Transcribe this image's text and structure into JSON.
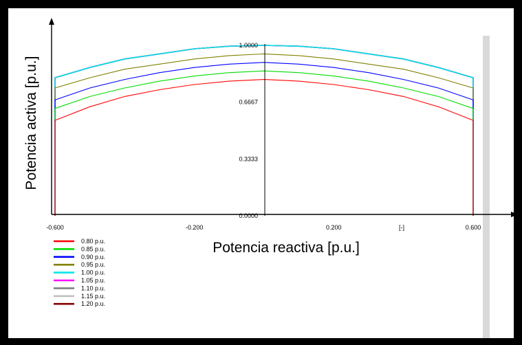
{
  "chart_data": {
    "type": "line",
    "title": "",
    "xlabel": "Potencia reactiva [p.u.]",
    "ylabel": "Potencia activa [p.u.]",
    "x_unit_label": "[-]",
    "xlim": [
      -0.6,
      0.6
    ],
    "ylim": [
      0.0,
      1.0
    ],
    "x_ticks": [
      {
        "value": -0.6,
        "label": "-0.600"
      },
      {
        "value": -0.2,
        "label": "-0.200"
      },
      {
        "value": 0.2,
        "label": "0.200"
      },
      {
        "value": 0.6,
        "label": "0.600"
      }
    ],
    "y_ticks": [
      {
        "value": 0.0,
        "label": "0.0000"
      },
      {
        "value": 0.3333,
        "label": "0.3333"
      },
      {
        "value": 0.6667,
        "label": "0.6667"
      },
      {
        "value": 1.0,
        "label": "1.0000"
      }
    ],
    "grid": false,
    "legend_position": "bottom-left",
    "x": [
      -0.6,
      -0.5,
      -0.4,
      -0.3,
      -0.2,
      -0.1,
      0.0,
      0.1,
      0.2,
      0.3,
      0.4,
      0.5,
      0.6
    ],
    "series": [
      {
        "name": "0.80 p.u.",
        "color": "#ff0000",
        "edge": 0.51,
        "values": [
          0.56,
          0.64,
          0.7,
          0.74,
          0.77,
          0.79,
          0.8,
          0.79,
          0.77,
          0.74,
          0.7,
          0.64,
          0.56
        ]
      },
      {
        "name": "0.85 p.u.",
        "color": "#00dd00",
        "edge": 0.61,
        "values": [
          0.63,
          0.7,
          0.75,
          0.79,
          0.82,
          0.84,
          0.85,
          0.84,
          0.82,
          0.79,
          0.75,
          0.7,
          0.63
        ]
      },
      {
        "name": "0.90 p.u.",
        "color": "#0000ff",
        "edge": 0.66,
        "values": [
          0.68,
          0.75,
          0.8,
          0.84,
          0.87,
          0.89,
          0.9,
          0.89,
          0.87,
          0.84,
          0.8,
          0.75,
          0.68
        ]
      },
      {
        "name": "0.95 p.u.",
        "color": "#808000",
        "edge": 0.72,
        "values": [
          0.75,
          0.81,
          0.86,
          0.89,
          0.92,
          0.94,
          0.95,
          0.94,
          0.92,
          0.89,
          0.86,
          0.81,
          0.75
        ]
      },
      {
        "name": "1.00 p.u.",
        "color": "#00e5e5",
        "edge": 0.8,
        "values": [
          0.81,
          0.87,
          0.92,
          0.95,
          0.98,
          0.995,
          1.0,
          0.995,
          0.98,
          0.95,
          0.92,
          0.87,
          0.81
        ]
      },
      {
        "name": "1.05 p.u.",
        "color": "#ff00ff",
        "edge": 0.8,
        "values": [
          0.81,
          0.87,
          0.92,
          0.95,
          0.98,
          0.995,
          1.0,
          0.995,
          0.98,
          0.95,
          0.92,
          0.87,
          0.81
        ]
      },
      {
        "name": "1.10 p.u.",
        "color": "#808080",
        "edge": 0.8,
        "values": [
          0.81,
          0.87,
          0.92,
          0.95,
          0.98,
          0.995,
          1.0,
          0.995,
          0.98,
          0.95,
          0.92,
          0.87,
          0.81
        ]
      },
      {
        "name": "1.15 p.u.",
        "color": "#c0c0c0",
        "edge": 0.8,
        "values": [
          0.81,
          0.87,
          0.92,
          0.95,
          0.98,
          0.995,
          1.0,
          0.995,
          0.98,
          0.95,
          0.92,
          0.87,
          0.81
        ]
      },
      {
        "name": "1.20 p.u.",
        "color": "#800000",
        "edge": 0.8,
        "values": [
          0.81,
          0.87,
          0.92,
          0.95,
          0.98,
          0.995,
          1.0,
          0.995,
          0.98,
          0.95,
          0.92,
          0.87,
          0.81
        ]
      }
    ]
  }
}
